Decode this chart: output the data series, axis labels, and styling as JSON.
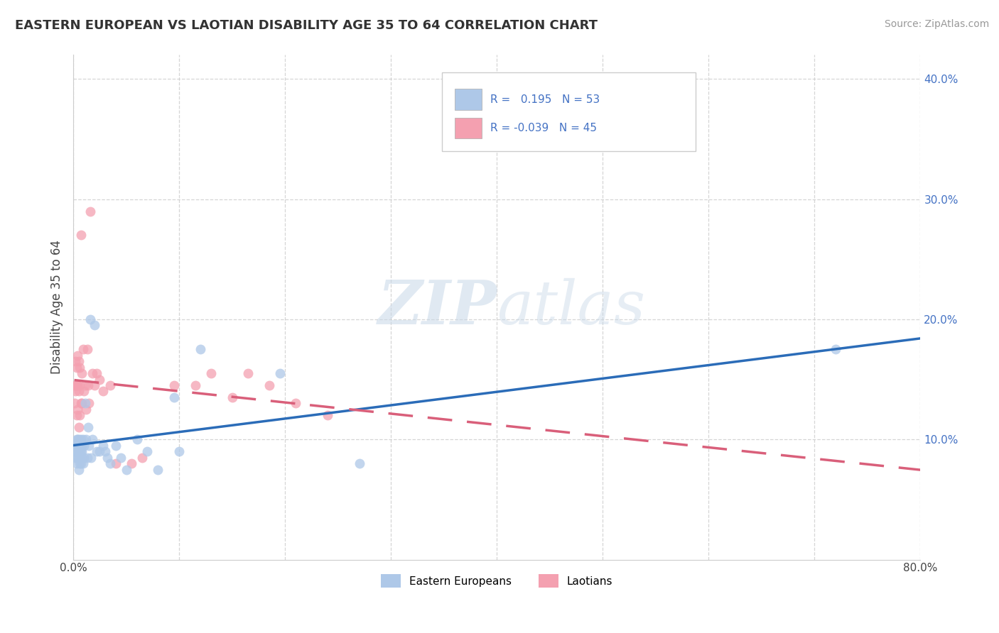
{
  "title": "EASTERN EUROPEAN VS LAOTIAN DISABILITY AGE 35 TO 64 CORRELATION CHART",
  "source": "Source: ZipAtlas.com",
  "ylabel": "Disability Age 35 to 64",
  "watermark": "ZIPatlas",
  "r_eastern": 0.195,
  "n_eastern": 53,
  "r_laotian": -0.039,
  "n_laotian": 45,
  "xlim": [
    0.0,
    0.8
  ],
  "ylim": [
    0.0,
    0.42
  ],
  "xtick_labels": [
    "0.0%",
    "",
    "",
    "",
    "",
    "",
    "",
    "",
    "80.0%"
  ],
  "xtick_vals": [
    0.0,
    0.1,
    0.2,
    0.3,
    0.4,
    0.5,
    0.6,
    0.7,
    0.8
  ],
  "ytick_labels": [
    "10.0%",
    "20.0%",
    "30.0%",
    "40.0%"
  ],
  "ytick_vals": [
    0.1,
    0.2,
    0.3,
    0.4
  ],
  "color_eastern": "#aec8e8",
  "color_laotian": "#f4a0b0",
  "line_color_eastern": "#2b6cb8",
  "line_color_laotian": "#d95f7a",
  "bg_color": "#ffffff",
  "eastern_x": [
    0.001,
    0.002,
    0.002,
    0.003,
    0.003,
    0.003,
    0.004,
    0.004,
    0.004,
    0.005,
    0.005,
    0.005,
    0.005,
    0.006,
    0.006,
    0.006,
    0.007,
    0.007,
    0.007,
    0.008,
    0.008,
    0.008,
    0.009,
    0.009,
    0.01,
    0.01,
    0.011,
    0.012,
    0.013,
    0.014,
    0.015,
    0.016,
    0.017,
    0.018,
    0.02,
    0.022,
    0.025,
    0.028,
    0.03,
    0.032,
    0.035,
    0.04,
    0.045,
    0.05,
    0.06,
    0.07,
    0.08,
    0.095,
    0.1,
    0.12,
    0.195,
    0.27,
    0.72
  ],
  "eastern_y": [
    0.085,
    0.09,
    0.095,
    0.08,
    0.09,
    0.1,
    0.085,
    0.095,
    0.1,
    0.075,
    0.085,
    0.09,
    0.1,
    0.08,
    0.09,
    0.095,
    0.08,
    0.09,
    0.1,
    0.085,
    0.09,
    0.095,
    0.08,
    0.1,
    0.085,
    0.095,
    0.13,
    0.1,
    0.085,
    0.11,
    0.095,
    0.2,
    0.085,
    0.1,
    0.195,
    0.09,
    0.09,
    0.095,
    0.09,
    0.085,
    0.08,
    0.095,
    0.085,
    0.075,
    0.1,
    0.09,
    0.075,
    0.135,
    0.09,
    0.175,
    0.155,
    0.08,
    0.175
  ],
  "laotian_x": [
    0.001,
    0.001,
    0.002,
    0.002,
    0.003,
    0.003,
    0.003,
    0.004,
    0.004,
    0.004,
    0.005,
    0.005,
    0.005,
    0.006,
    0.006,
    0.006,
    0.007,
    0.007,
    0.008,
    0.008,
    0.009,
    0.01,
    0.011,
    0.012,
    0.013,
    0.014,
    0.015,
    0.016,
    0.018,
    0.02,
    0.022,
    0.025,
    0.028,
    0.035,
    0.04,
    0.055,
    0.065,
    0.095,
    0.115,
    0.13,
    0.15,
    0.165,
    0.185,
    0.21,
    0.24
  ],
  "laotian_y": [
    0.13,
    0.145,
    0.14,
    0.165,
    0.12,
    0.145,
    0.16,
    0.125,
    0.145,
    0.17,
    0.11,
    0.14,
    0.165,
    0.12,
    0.145,
    0.16,
    0.13,
    0.27,
    0.13,
    0.155,
    0.175,
    0.14,
    0.145,
    0.125,
    0.175,
    0.145,
    0.13,
    0.29,
    0.155,
    0.145,
    0.155,
    0.15,
    0.14,
    0.145,
    0.08,
    0.08,
    0.085,
    0.145,
    0.145,
    0.155,
    0.135,
    0.155,
    0.145,
    0.13,
    0.12
  ],
  "eastern_marker_size": 100,
  "laotian_marker_size": 100
}
